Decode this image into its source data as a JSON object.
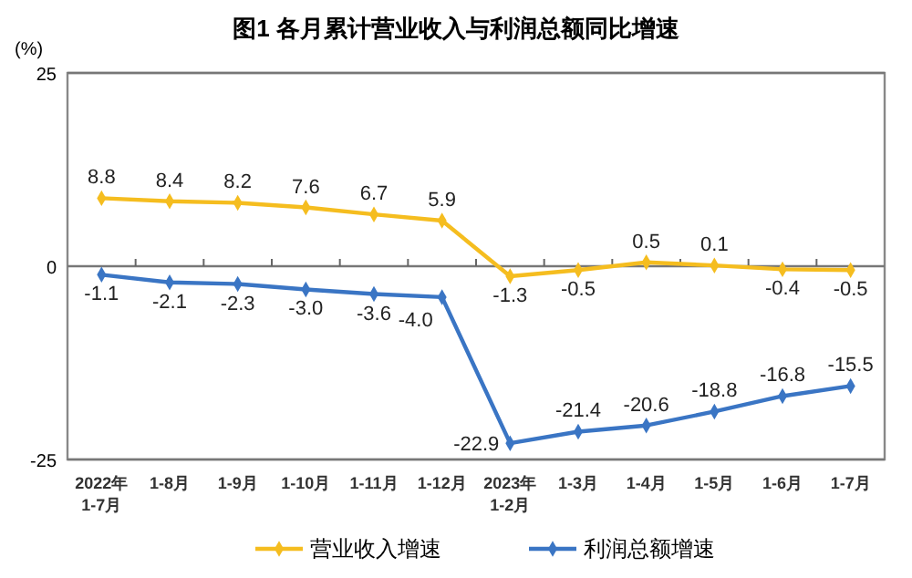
{
  "chart_data": {
    "type": "line",
    "title": "图1  各月累计营业收入与利润总额同比增速",
    "ylabel": "(%)",
    "categories": [
      "2022年\n1-7月",
      "1-8月",
      "1-9月",
      "1-10月",
      "1-11月",
      "1-12月",
      "2023年\n1-2月",
      "1-3月",
      "1-4月",
      "1-5月",
      "1-6月",
      "1-7月"
    ],
    "series": [
      {
        "name": "营业收入增速",
        "color": "#f5bd1f",
        "values": [
          8.8,
          8.4,
          8.2,
          7.6,
          6.7,
          5.9,
          -1.3,
          -0.5,
          0.5,
          0.1,
          -0.4,
          -0.5
        ],
        "value_labels": [
          "8.8",
          "8.4",
          "8.2",
          "7.6",
          "6.7",
          "5.9",
          "-1.3",
          "-0.5",
          "0.5",
          "0.1",
          "-0.4",
          "-0.5"
        ]
      },
      {
        "name": "利润总额增速",
        "color": "#3a75c4",
        "values": [
          -1.1,
          -2.1,
          -2.3,
          -3.0,
          -3.6,
          -4.0,
          -22.9,
          -21.4,
          -20.6,
          -18.8,
          -16.8,
          -15.5
        ],
        "value_labels": [
          "-1.1",
          "-2.1",
          "-2.3",
          "-3.0",
          "-3.6",
          "-4.0",
          "-22.9",
          "-21.4",
          "-20.6",
          "-18.8",
          "-16.8",
          "-15.5"
        ]
      }
    ],
    "ylim": [
      -25,
      25
    ],
    "yticks": [
      -25,
      0,
      25
    ],
    "grid": "y",
    "legend": "bottom",
    "marker": "diamond",
    "line_style": "solid"
  }
}
